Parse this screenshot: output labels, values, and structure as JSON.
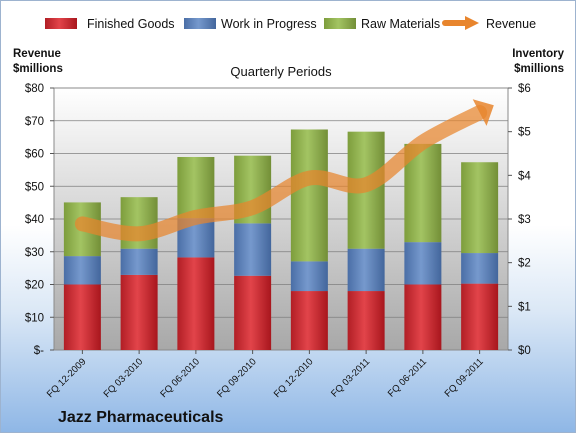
{
  "chart_data": {
    "type": "bar",
    "title": "Quarterly Periods",
    "company": "Jazz Pharmaceuticals",
    "y_left_title": [
      "Revenue",
      "$millions"
    ],
    "y_right_title": [
      "Inventory",
      "$millions"
    ],
    "categories": [
      "FQ 12-2009",
      "FQ 03-2010",
      "FQ 06-2010",
      "FQ 09-2010",
      "FQ 12-2010",
      "FQ 03-2011",
      "FQ 06-2011",
      "FQ 09-2011"
    ],
    "stacked": true,
    "grid": true,
    "legend_position": "top",
    "ylim_left": [
      0,
      80
    ],
    "ylim_right": [
      0,
      6
    ],
    "y_ticks_left": [
      "$-",
      "$10",
      "$20",
      "$30",
      "$40",
      "$50",
      "$60",
      "$70",
      "$80"
    ],
    "y_ticks_right": [
      "$0",
      "$1",
      "$2",
      "$3",
      "$4",
      "$5",
      "$6"
    ],
    "series": [
      {
        "name": "Finished Goods",
        "axis": "right",
        "color": "#cc2a30",
        "values": [
          1.5,
          1.72,
          2.12,
          1.7,
          1.35,
          1.35,
          1.5,
          1.52
        ]
      },
      {
        "name": "Work in Progress",
        "axis": "right",
        "color": "#5b7fb8",
        "values": [
          0.65,
          0.6,
          0.9,
          1.2,
          0.68,
          0.97,
          0.97,
          0.7
        ]
      },
      {
        "name": "Raw Materials",
        "axis": "right",
        "color": "#8fb04c",
        "values": [
          1.23,
          1.18,
          1.4,
          1.55,
          3.02,
          2.68,
          2.25,
          2.08
        ]
      },
      {
        "name": "Revenue",
        "axis": "left",
        "type": "line",
        "color": "#e8852d",
        "values": [
          38.5,
          35.5,
          40.5,
          43.5,
          52.5,
          50.5,
          63.5,
          72.5
        ]
      }
    ]
  }
}
